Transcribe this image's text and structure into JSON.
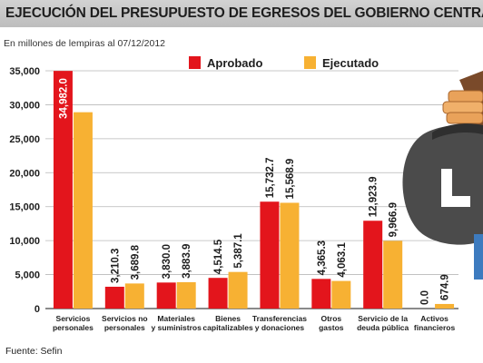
{
  "colors": {
    "aprobado": "#e3151c",
    "ejecutado": "#f7b133",
    "grid": "#b8b8b8",
    "text": "#1e1e1e"
  },
  "chart_data": {
    "type": "bar",
    "title": "EJECUCIÓN DEL PRESUPUESTO DE EGRESOS DEL GOBIERNO CENTRAL",
    "subtitle": "En millones de lempiras al 07/12/2012",
    "source": "Fuente: Sefin",
    "categories": [
      [
        "Servicios",
        "personales"
      ],
      [
        "Servicios no",
        "personales"
      ],
      [
        "Materiales",
        "y suministros"
      ],
      [
        "Bienes",
        "capitalizables"
      ],
      [
        "Transferencias",
        "y donaciones"
      ],
      [
        "Otros",
        "gastos"
      ],
      [
        "Servicio de la",
        "deuda pública"
      ],
      [
        "Activos",
        "financieros"
      ]
    ],
    "series": [
      {
        "name": "Aprobado",
        "values": [
          34982.0,
          3210.3,
          3830.0,
          4514.5,
          15732.7,
          4365.3,
          12923.9,
          0.0
        ],
        "labels": [
          "34,982.0",
          "3,210.3",
          "3,830.0",
          "4,514.5",
          "15,732.7",
          "4,365.3",
          "12,923.9",
          "0.0"
        ]
      },
      {
        "name": "Ejecutado",
        "values": [
          28900,
          3689.8,
          3883.9,
          5387.1,
          15568.9,
          4063.1,
          9966.9,
          674.9
        ],
        "labels": [
          "",
          "3,689.8",
          "3,883.9",
          "5,387.1",
          "15,568.9",
          "4,063.1",
          "9,966.9",
          "674.9"
        ]
      }
    ],
    "ylim": [
      0,
      35000
    ],
    "yticks": [
      0,
      5000,
      10000,
      15000,
      20000,
      25000,
      30000,
      35000
    ],
    "ytick_labels": [
      "0",
      "5,000",
      "10,000",
      "15,000",
      "20,000",
      "25,000",
      "30,000",
      "35,000"
    ],
    "grid": true,
    "legend_position": "top-center"
  }
}
